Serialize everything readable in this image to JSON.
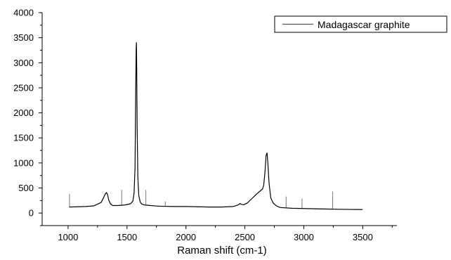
{
  "chart_data": {
    "type": "line",
    "xlabel": "Raman shift (cm-1)",
    "ylabel": "",
    "xlim": [
      780,
      3790
    ],
    "ylim": [
      -250,
      4000
    ],
    "x_ticks": [
      1000,
      1500,
      2000,
      2500,
      3000,
      3500
    ],
    "y_ticks": [
      0,
      500,
      1000,
      1500,
      2000,
      2500,
      3000,
      3500,
      4000
    ],
    "legend_position": "top-right",
    "grid": false,
    "line_color": "#000000",
    "series": [
      {
        "name": "Madagascar graphite",
        "x": [
          1010,
          1080,
          1150,
          1220,
          1280,
          1300,
          1315,
          1325,
          1335,
          1345,
          1360,
          1380,
          1420,
          1480,
          1530,
          1550,
          1560,
          1568,
          1574,
          1578,
          1580,
          1582,
          1586,
          1592,
          1600,
          1612,
          1625,
          1650,
          1700,
          1750,
          1800,
          1900,
          2000,
          2100,
          2200,
          2300,
          2400,
          2440,
          2460,
          2470,
          2490,
          2520,
          2560,
          2600,
          2620,
          2640,
          2650,
          2660,
          2670,
          2680,
          2688,
          2695,
          2705,
          2720,
          2740,
          2770,
          2800,
          2900,
          3000,
          3100,
          3200,
          3300,
          3400,
          3500
        ],
        "y": [
          120,
          125,
          130,
          145,
          210,
          300,
          380,
          410,
          370,
          260,
          180,
          150,
          150,
          160,
          185,
          240,
          400,
          900,
          2500,
          3300,
          3400,
          3000,
          1700,
          700,
          350,
          220,
          180,
          160,
          150,
          140,
          135,
          130,
          130,
          125,
          120,
          120,
          130,
          160,
          190,
          175,
          165,
          200,
          290,
          380,
          420,
          460,
          480,
          560,
          800,
          1150,
          1200,
          1000,
          600,
          300,
          200,
          140,
          110,
          95,
          90,
          85,
          80,
          75,
          72,
          70
        ]
      }
    ],
    "artifact_spikes": [
      {
        "x": 1012,
        "y": 380
      },
      {
        "x": 1455,
        "y": 460
      },
      {
        "x": 1660,
        "y": 460
      },
      {
        "x": 1825,
        "y": 230
      },
      {
        "x": 2850,
        "y": 330
      },
      {
        "x": 2985,
        "y": 290
      },
      {
        "x": 3245,
        "y": 430
      }
    ]
  }
}
